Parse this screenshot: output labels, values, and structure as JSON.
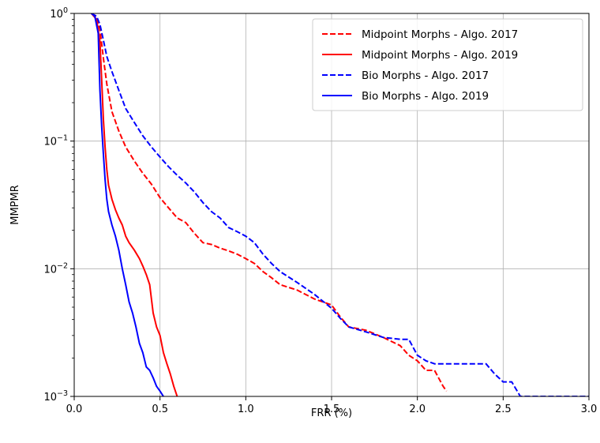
{
  "chart_data": {
    "type": "line",
    "xlabel": "FRR (%)",
    "ylabel": "MMPMR",
    "xlim": [
      0,
      3.0
    ],
    "ylim": [
      0.001,
      1
    ],
    "yscale": "log",
    "grid": true,
    "legend_position": "top-right",
    "x_ticks": [
      0.0,
      0.5,
      1.0,
      1.5,
      2.0,
      2.5,
      3.0
    ],
    "x_tick_labels": [
      "0.0",
      "0.5",
      "1.0",
      "1.5",
      "2.0",
      "2.5",
      "3.0"
    ],
    "y_ticks": [
      {
        "value": 1,
        "base": "10",
        "exp": "0"
      },
      {
        "value": 0.1,
        "base": "10",
        "exp": "−1"
      },
      {
        "value": 0.01,
        "base": "10",
        "exp": "−2"
      },
      {
        "value": 0.001,
        "base": "10",
        "exp": "−3"
      }
    ],
    "series": [
      {
        "name": "Midpoint Morphs - Algo. 2017",
        "color": "#ff0000",
        "style": "dashed",
        "x": [
          0.1,
          0.13,
          0.15,
          0.17,
          0.19,
          0.22,
          0.26,
          0.3,
          0.35,
          0.4,
          0.45,
          0.5,
          0.55,
          0.6,
          0.65,
          0.7,
          0.75,
          0.8,
          0.85,
          0.9,
          0.95,
          1.0,
          1.05,
          1.1,
          1.15,
          1.2,
          1.3,
          1.4,
          1.5,
          1.55,
          1.6,
          1.7,
          1.8,
          1.9,
          1.95,
          2.0,
          2.05,
          2.1,
          2.15,
          2.17
        ],
        "y": [
          1.0,
          0.95,
          0.75,
          0.45,
          0.28,
          0.17,
          0.12,
          0.09,
          0.07,
          0.056,
          0.046,
          0.036,
          0.03,
          0.025,
          0.023,
          0.019,
          0.016,
          0.0155,
          0.0145,
          0.0138,
          0.013,
          0.012,
          0.011,
          0.0095,
          0.0085,
          0.0075,
          0.0068,
          0.0058,
          0.0052,
          0.0042,
          0.0035,
          0.0033,
          0.0029,
          0.0025,
          0.0021,
          0.0019,
          0.0016,
          0.0016,
          0.0012,
          0.0011
        ]
      },
      {
        "name": "Midpoint Morphs - Algo. 2019",
        "color": "#ff0000",
        "style": "solid",
        "x": [
          0.1,
          0.13,
          0.15,
          0.16,
          0.17,
          0.18,
          0.19,
          0.2,
          0.22,
          0.24,
          0.26,
          0.28,
          0.3,
          0.32,
          0.35,
          0.38,
          0.4,
          0.42,
          0.44,
          0.46,
          0.48,
          0.5,
          0.52,
          0.54,
          0.56,
          0.58,
          0.6
        ],
        "y": [
          1.0,
          0.9,
          0.6,
          0.3,
          0.15,
          0.09,
          0.06,
          0.045,
          0.035,
          0.029,
          0.025,
          0.022,
          0.018,
          0.016,
          0.014,
          0.012,
          0.0105,
          0.009,
          0.0075,
          0.0045,
          0.0035,
          0.003,
          0.0022,
          0.0018,
          0.0015,
          0.0012,
          0.001
        ]
      },
      {
        "name": "Bio Morphs - Algo. 2017",
        "color": "#0000ff",
        "style": "dashed",
        "x": [
          0.1,
          0.13,
          0.15,
          0.17,
          0.19,
          0.22,
          0.26,
          0.3,
          0.35,
          0.4,
          0.45,
          0.5,
          0.55,
          0.6,
          0.65,
          0.7,
          0.75,
          0.8,
          0.85,
          0.9,
          0.95,
          1.0,
          1.05,
          1.1,
          1.15,
          1.2,
          1.3,
          1.4,
          1.5,
          1.55,
          1.6,
          1.7,
          1.8,
          1.9,
          1.95,
          2.0,
          2.05,
          2.1,
          2.2,
          2.3,
          2.4,
          2.45,
          2.5,
          2.55,
          2.6,
          2.7,
          2.8,
          2.9,
          3.0
        ],
        "y": [
          1.0,
          0.95,
          0.82,
          0.62,
          0.46,
          0.35,
          0.25,
          0.18,
          0.14,
          0.11,
          0.09,
          0.075,
          0.063,
          0.054,
          0.047,
          0.04,
          0.033,
          0.028,
          0.025,
          0.021,
          0.0195,
          0.018,
          0.016,
          0.013,
          0.011,
          0.0095,
          0.0078,
          0.0063,
          0.0049,
          0.0041,
          0.0035,
          0.0032,
          0.0029,
          0.0028,
          0.0028,
          0.0021,
          0.0019,
          0.0018,
          0.0018,
          0.0018,
          0.0018,
          0.0015,
          0.0013,
          0.0013,
          0.001,
          0.001,
          0.001,
          0.001,
          0.001
        ]
      },
      {
        "name": "Bio Morphs - Algo. 2019",
        "color": "#0000ff",
        "style": "solid",
        "x": [
          0.1,
          0.12,
          0.14,
          0.15,
          0.16,
          0.17,
          0.18,
          0.19,
          0.2,
          0.22,
          0.24,
          0.26,
          0.28,
          0.3,
          0.32,
          0.34,
          0.36,
          0.38,
          0.4,
          0.42,
          0.44,
          0.46,
          0.48,
          0.5,
          0.52
        ],
        "y": [
          1.0,
          0.95,
          0.7,
          0.25,
          0.13,
          0.08,
          0.05,
          0.035,
          0.028,
          0.022,
          0.018,
          0.014,
          0.01,
          0.0075,
          0.0055,
          0.0045,
          0.0035,
          0.0026,
          0.0022,
          0.0017,
          0.0016,
          0.0014,
          0.0012,
          0.0011,
          0.001
        ]
      }
    ]
  }
}
